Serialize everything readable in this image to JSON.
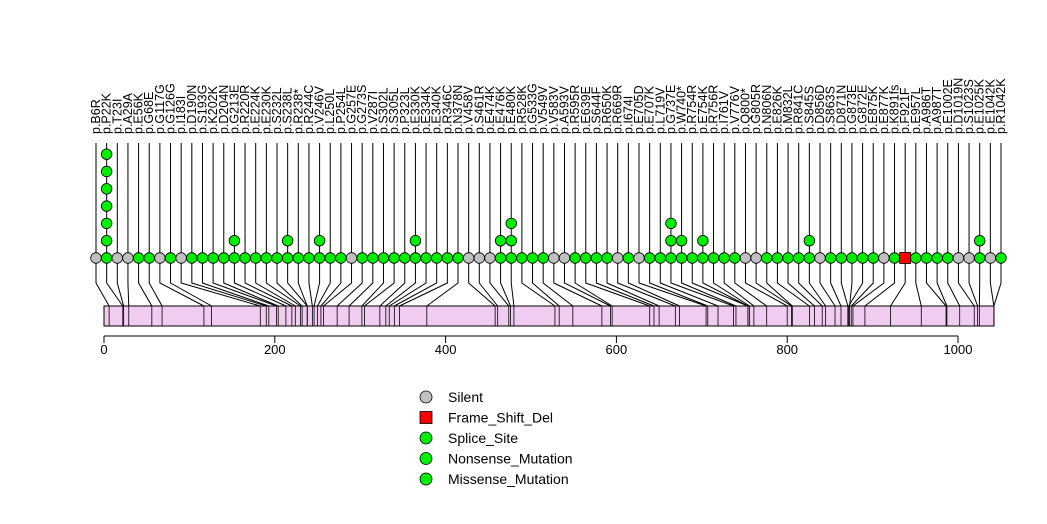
{
  "chart_data": {
    "type": "lollipop",
    "title": "",
    "xlabel": "",
    "ylabel": "",
    "xlim": [
      0,
      1042
    ],
    "x_ticks": [
      0,
      200,
      400,
      600,
      800,
      1000
    ],
    "protein_length": 1042,
    "lollipop_stick_color": "#000000",
    "protein_bar_color": "#f0ccf0",
    "legend": [
      {
        "label": "Silent",
        "shape": "circle",
        "color": "#c0c0c0"
      },
      {
        "label": "Frame_Shift_Del",
        "shape": "square",
        "color": "#ff0000"
      },
      {
        "label": "Splice_Site",
        "shape": "circle",
        "color": "#00ee00"
      },
      {
        "label": "Nonsense_Mutation",
        "shape": "circle",
        "color": "#00ee00"
      },
      {
        "label": "Missense_Mutation",
        "shape": "circle",
        "color": "#00ee00"
      }
    ],
    "mutations": [
      {
        "label": "p.B6R",
        "position": 6,
        "type": "Silent",
        "count": 1
      },
      {
        "label": "p.P22K",
        "position": 22,
        "type": "Missense_Mutation",
        "count": 7
      },
      {
        "label": "p.T23I",
        "position": 23,
        "type": "Silent",
        "count": 1
      },
      {
        "label": "p.A29A",
        "position": 29,
        "type": "Silent",
        "count": 1
      },
      {
        "label": "p.E56K",
        "position": 56,
        "type": "Missense_Mutation",
        "count": 1
      },
      {
        "label": "p.G68E",
        "position": 68,
        "type": "Missense_Mutation",
        "count": 1
      },
      {
        "label": "p.G117G",
        "position": 117,
        "type": "Silent",
        "count": 1
      },
      {
        "label": "p.G126G",
        "position": 126,
        "type": "Missense_Mutation",
        "count": 1
      },
      {
        "label": "p.I183I",
        "position": 183,
        "type": "Silent",
        "count": 1
      },
      {
        "label": "p.D190N",
        "position": 190,
        "type": "Missense_Mutation",
        "count": 1
      },
      {
        "label": "p.S193G",
        "position": 193,
        "type": "Missense_Mutation",
        "count": 1
      },
      {
        "label": "p.K202K",
        "position": 202,
        "type": "Missense_Mutation",
        "count": 1
      },
      {
        "label": "p.D204N",
        "position": 204,
        "type": "Missense_Mutation",
        "count": 1
      },
      {
        "label": "p.G213E",
        "position": 213,
        "type": "Missense_Mutation",
        "count": 2
      },
      {
        "label": "p.R220R",
        "position": 220,
        "type": "Missense_Mutation",
        "count": 1
      },
      {
        "label": "p.E224K",
        "position": 224,
        "type": "Missense_Mutation",
        "count": 1
      },
      {
        "label": "p.E230K",
        "position": 230,
        "type": "Missense_Mutation",
        "count": 1
      },
      {
        "label": "p.S232L",
        "position": 232,
        "type": "Missense_Mutation",
        "count": 1
      },
      {
        "label": "p.S238L",
        "position": 238,
        "type": "Missense_Mutation",
        "count": 2
      },
      {
        "label": "p.R238*",
        "position": 238,
        "type": "Missense_Mutation",
        "count": 1
      },
      {
        "label": "p.R244C",
        "position": 244,
        "type": "Missense_Mutation",
        "count": 1
      },
      {
        "label": "p.V246V",
        "position": 246,
        "type": "Missense_Mutation",
        "count": 2
      },
      {
        "label": "p.L250L",
        "position": 250,
        "type": "Missense_Mutation",
        "count": 1
      },
      {
        "label": "p.P254L",
        "position": 254,
        "type": "Missense_Mutation",
        "count": 1
      },
      {
        "label": "p.G257E",
        "position": 257,
        "type": "Silent",
        "count": 1
      },
      {
        "label": "p.G273S",
        "position": 273,
        "type": "Missense_Mutation",
        "count": 1
      },
      {
        "label": "p.V287I",
        "position": 287,
        "type": "Missense_Mutation",
        "count": 1
      },
      {
        "label": "p.S302L",
        "position": 302,
        "type": "Missense_Mutation",
        "count": 1
      },
      {
        "label": "p.S305L",
        "position": 305,
        "type": "Missense_Mutation",
        "count": 1
      },
      {
        "label": "p.P323L",
        "position": 323,
        "type": "Missense_Mutation",
        "count": 1
      },
      {
        "label": "p.E330K",
        "position": 330,
        "type": "Missense_Mutation",
        "count": 2
      },
      {
        "label": "p.E334K",
        "position": 334,
        "type": "Missense_Mutation",
        "count": 1
      },
      {
        "label": "p.E340K",
        "position": 340,
        "type": "Missense_Mutation",
        "count": 1
      },
      {
        "label": "p.R346C",
        "position": 346,
        "type": "Missense_Mutation",
        "count": 1
      },
      {
        "label": "p.N378N",
        "position": 378,
        "type": "Missense_Mutation",
        "count": 1
      },
      {
        "label": "p.V458V",
        "position": 458,
        "type": "Silent",
        "count": 1
      },
      {
        "label": "p.S461R",
        "position": 461,
        "type": "Silent",
        "count": 1
      },
      {
        "label": "p.E474K",
        "position": 474,
        "type": "Silent",
        "count": 1
      },
      {
        "label": "p.E476K",
        "position": 476,
        "type": "Missense_Mutation",
        "count": 2
      },
      {
        "label": "p.E480K",
        "position": 480,
        "type": "Missense_Mutation",
        "count": 3
      },
      {
        "label": "p.R528K",
        "position": 528,
        "type": "Missense_Mutation",
        "count": 1
      },
      {
        "label": "p.G533G",
        "position": 533,
        "type": "Missense_Mutation",
        "count": 1
      },
      {
        "label": "p.V549V",
        "position": 549,
        "type": "Missense_Mutation",
        "count": 1
      },
      {
        "label": "p.V583V",
        "position": 583,
        "type": "Silent",
        "count": 1
      },
      {
        "label": "p.A593V",
        "position": 593,
        "type": "Silent",
        "count": 1
      },
      {
        "label": "p.R595R",
        "position": 595,
        "type": "Missense_Mutation",
        "count": 1
      },
      {
        "label": "p.E639E",
        "position": 639,
        "type": "Missense_Mutation",
        "count": 1
      },
      {
        "label": "p.S644F",
        "position": 644,
        "type": "Missense_Mutation",
        "count": 1
      },
      {
        "label": "p.R650K",
        "position": 650,
        "type": "Missense_Mutation",
        "count": 1
      },
      {
        "label": "p.R669R",
        "position": 669,
        "type": "Silent",
        "count": 1
      },
      {
        "label": "p.I674I",
        "position": 674,
        "type": "Missense_Mutation",
        "count": 1
      },
      {
        "label": "p.E705D",
        "position": 705,
        "type": "Silent",
        "count": 1
      },
      {
        "label": "p.E707K",
        "position": 707,
        "type": "Missense_Mutation",
        "count": 1
      },
      {
        "label": "p.L719V",
        "position": 719,
        "type": "Missense_Mutation",
        "count": 1
      },
      {
        "label": "p.G737E",
        "position": 737,
        "type": "Missense_Mutation",
        "count": 3
      },
      {
        "label": "p.W740*",
        "position": 740,
        "type": "Missense_Mutation",
        "count": 2
      },
      {
        "label": "p.R754R",
        "position": 754,
        "type": "Missense_Mutation",
        "count": 1
      },
      {
        "label": "p.E754K",
        "position": 754,
        "type": "Missense_Mutation",
        "count": 2
      },
      {
        "label": "p.R756R",
        "position": 756,
        "type": "Missense_Mutation",
        "count": 1
      },
      {
        "label": "p.I761V",
        "position": 761,
        "type": "Missense_Mutation",
        "count": 1
      },
      {
        "label": "p.V776V",
        "position": 776,
        "type": "Missense_Mutation",
        "count": 1
      },
      {
        "label": "p.Q800*",
        "position": 800,
        "type": "Silent",
        "count": 1
      },
      {
        "label": "p.G805R",
        "position": 805,
        "type": "Silent",
        "count": 1
      },
      {
        "label": "p.N806N",
        "position": 806,
        "type": "Missense_Mutation",
        "count": 1
      },
      {
        "label": "p.E826K",
        "position": 826,
        "type": "Missense_Mutation",
        "count": 1
      },
      {
        "label": "p.M832L",
        "position": 832,
        "type": "Missense_Mutation",
        "count": 1
      },
      {
        "label": "p.R841C",
        "position": 841,
        "type": "Missense_Mutation",
        "count": 1
      },
      {
        "label": "p.S845S",
        "position": 845,
        "type": "Missense_Mutation",
        "count": 2
      },
      {
        "label": "p.D856D",
        "position": 856,
        "type": "Silent",
        "count": 1
      },
      {
        "label": "p.S863S",
        "position": 863,
        "type": "Missense_Mutation",
        "count": 1
      },
      {
        "label": "p.D871N",
        "position": 871,
        "type": "Missense_Mutation",
        "count": 1
      },
      {
        "label": "p.G873E",
        "position": 873,
        "type": "Missense_Mutation",
        "count": 1
      },
      {
        "label": "p.G872E",
        "position": 872,
        "type": "Missense_Mutation",
        "count": 1
      },
      {
        "label": "p.E875K",
        "position": 875,
        "type": "Missense_Mutation",
        "count": 1
      },
      {
        "label": "p.E877K",
        "position": 877,
        "type": "Silent",
        "count": 1
      },
      {
        "label": "p.K891fs",
        "position": 891,
        "type": "Missense_Mutation",
        "count": 1
      },
      {
        "label": "p.F921F",
        "position": 921,
        "type": "Frame_Shift_Del",
        "count": 1
      },
      {
        "label": "p.E957L",
        "position": 957,
        "type": "Missense_Mutation",
        "count": 1
      },
      {
        "label": "p.A986T",
        "position": 986,
        "type": "Missense_Mutation",
        "count": 1
      },
      {
        "label": "p.A987T",
        "position": 987,
        "type": "Missense_Mutation",
        "count": 1
      },
      {
        "label": "p.E1002E",
        "position": 1002,
        "type": "Missense_Mutation",
        "count": 1
      },
      {
        "label": "p.D1019N",
        "position": 1019,
        "type": "Silent",
        "count": 1
      },
      {
        "label": "p.S1023S",
        "position": 1023,
        "type": "Silent",
        "count": 1
      },
      {
        "label": "p.E1025K",
        "position": 1025,
        "type": "Missense_Mutation",
        "count": 2
      },
      {
        "label": "p.E1042K",
        "position": 1042,
        "type": "Silent",
        "count": 1
      },
      {
        "label": "p.R1042K",
        "position": 1042,
        "type": "Missense_Mutation",
        "count": 1
      }
    ]
  }
}
